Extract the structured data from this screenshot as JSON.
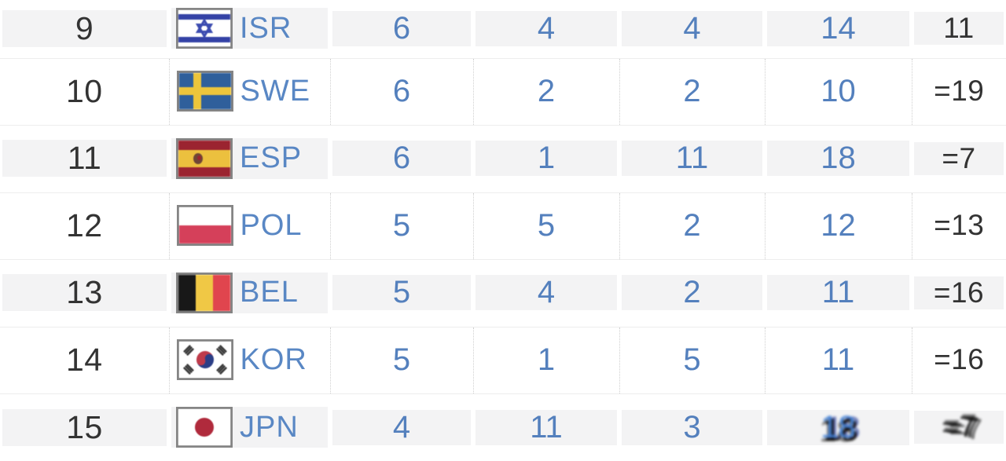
{
  "table": {
    "description": "medal standings rows 9-15",
    "colors": {
      "count_blue": "#5480bd",
      "code_blue": "#5987c4",
      "text_dark": "#333333",
      "row_shade": "#f3f3f4",
      "dotted_separator": "#cfcfcf",
      "flag_border": "#858585"
    },
    "rows": [
      {
        "rank": "9",
        "noc": "ISR",
        "flag_icon": "flag-isr-icon",
        "gold": "6",
        "silver": "4",
        "bronze": "4",
        "total": "14",
        "total_rank": "11"
      },
      {
        "rank": "10",
        "noc": "SWE",
        "flag_icon": "flag-swe-icon",
        "gold": "6",
        "silver": "2",
        "bronze": "2",
        "total": "10",
        "total_rank": "=19"
      },
      {
        "rank": "11",
        "noc": "ESP",
        "flag_icon": "flag-esp-icon",
        "gold": "6",
        "silver": "1",
        "bronze": "11",
        "total": "18",
        "total_rank": "=7"
      },
      {
        "rank": "12",
        "noc": "POL",
        "flag_icon": "flag-pol-icon",
        "gold": "5",
        "silver": "5",
        "bronze": "2",
        "total": "12",
        "total_rank": "=13"
      },
      {
        "rank": "13",
        "noc": "BEL",
        "flag_icon": "flag-bel-icon",
        "gold": "5",
        "silver": "4",
        "bronze": "2",
        "total": "11",
        "total_rank": "=16"
      },
      {
        "rank": "14",
        "noc": "KOR",
        "flag_icon": "flag-kor-icon",
        "gold": "5",
        "silver": "1",
        "bronze": "5",
        "total": "11",
        "total_rank": "=16"
      },
      {
        "rank": "15",
        "noc": "JPN",
        "flag_icon": "flag-jpn-icon",
        "gold": "4",
        "silver": "11",
        "bronze": "3",
        "total": "18",
        "total_rank": "=7",
        "corrupted_display": [
          "total",
          "total_rank"
        ]
      }
    ]
  }
}
